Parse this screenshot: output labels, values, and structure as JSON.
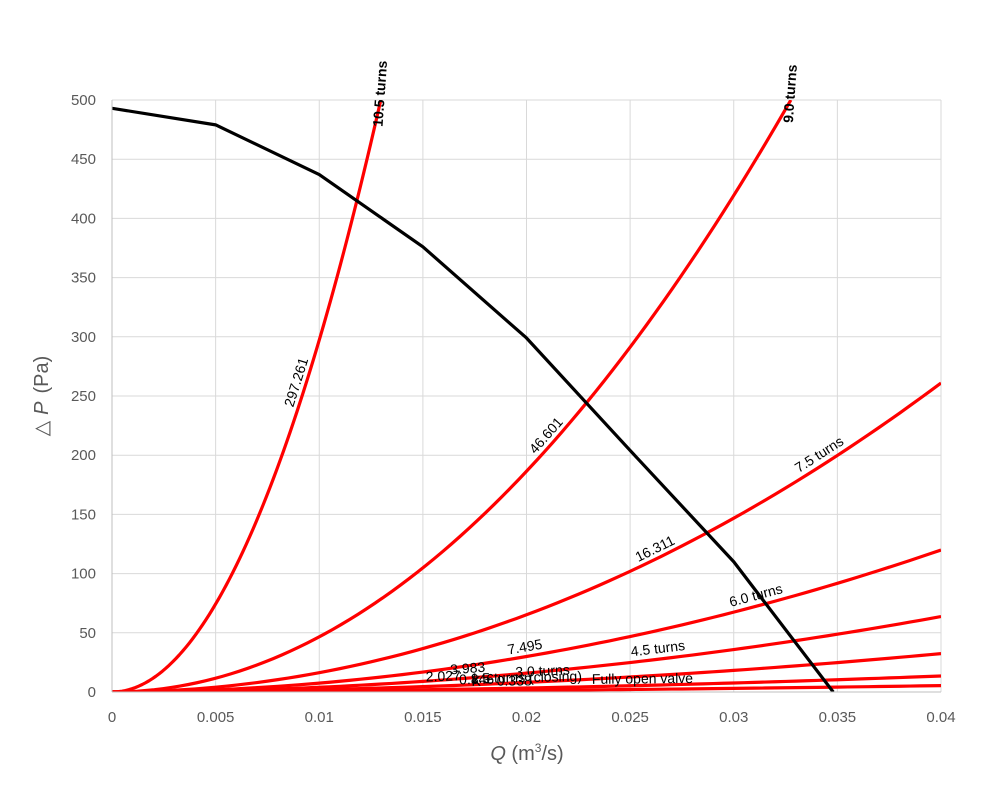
{
  "chart_data": {
    "type": "line",
    "xlabel_var": "Q",
    "xlabel_unit_pre": " (m",
    "xlabel_unit_sup": "3",
    "xlabel_unit_post": "/s)",
    "ylabel_sym": "△",
    "ylabel_var": "P",
    "ylabel_unit": "(Pa)",
    "xlim": [
      0,
      0.04
    ],
    "ylim": [
      0,
      500
    ],
    "x_ticks": [
      0,
      0.005,
      0.01,
      0.015,
      0.02,
      0.025,
      0.03,
      0.035,
      0.04
    ],
    "x_tick_labels": [
      "0",
      "0.005",
      "0.01",
      "0.015",
      "0.02",
      "0.025",
      "0.03",
      "0.035",
      "0.04"
    ],
    "y_ticks": [
      0,
      50,
      100,
      150,
      200,
      250,
      300,
      350,
      400,
      450,
      500
    ],
    "y_tick_labels": [
      "0",
      "50",
      "100",
      "150",
      "200",
      "250",
      "300",
      "350",
      "400",
      "450",
      "500"
    ],
    "grid": true,
    "colors": {
      "system_curves": "#ff0000",
      "fan_curve": "#000000",
      "grid": "#d9d9d9",
      "axis": "#bfbfbf",
      "text": "#595959"
    },
    "system_curves": [
      {
        "name": "10.5 turns",
        "k": 297.261,
        "k_label": "297.261",
        "top_label": true
      },
      {
        "name": "9.0 turns",
        "k": 46.601,
        "k_label": "46.601",
        "top_label": true
      },
      {
        "name": "7.5 turns",
        "k": 16.311,
        "k_label": "16.311"
      },
      {
        "name": "6.0 turns",
        "k": 7.495,
        "k_label": "7.495"
      },
      {
        "name": "4.5 turns",
        "k": 3.983,
        "k_label": "3.983"
      },
      {
        "name": "3.0 turns",
        "k": 2.027,
        "k_label": "2.027"
      },
      {
        "name": "1.5 turns (closing)",
        "k": 0.846,
        "k_label": "0.846"
      },
      {
        "name": "Fully open valve",
        "k": 0.338,
        "k_label": "K = 0.338"
      }
    ],
    "fan_curve": {
      "x": [
        0,
        0.005,
        0.01,
        0.015,
        0.02,
        0.025,
        0.03,
        0.0348
      ],
      "y": [
        493,
        479,
        437,
        376,
        299,
        204,
        110,
        0
      ]
    }
  }
}
